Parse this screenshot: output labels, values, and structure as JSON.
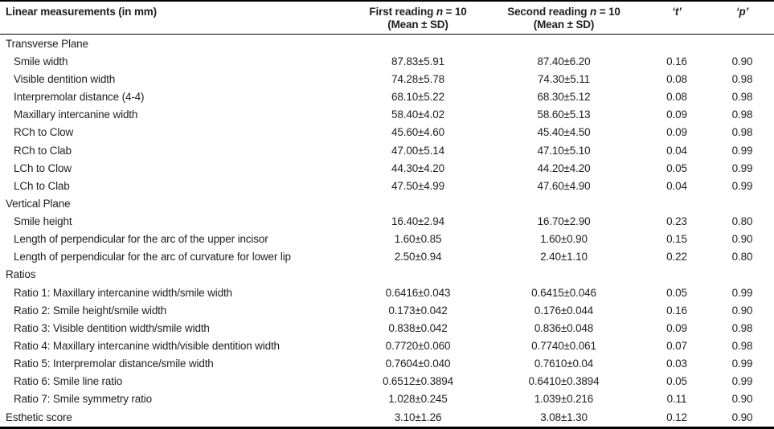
{
  "table": {
    "header": {
      "label_col": "Linear measurements (in mm)",
      "first": {
        "pre": "First reading ",
        "n": "n",
        "post": " = 10",
        "line2": "(Mean ± SD)"
      },
      "second": {
        "pre": "Second reading ",
        "n": "n",
        "post": " = 10",
        "line2": "(Mean ± SD)"
      },
      "t": "‘t’",
      "p": "‘p’"
    },
    "rows": [
      {
        "label": "Transverse Plane",
        "indent": false,
        "first": "",
        "second": "",
        "t": "",
        "p": ""
      },
      {
        "label": "Smile width",
        "indent": true,
        "first": "87.83±5.91",
        "second": "87.40±6.20",
        "t": "0.16",
        "p": "0.90"
      },
      {
        "label": "Visible dentition width",
        "indent": true,
        "first": "74.28±5.78",
        "second": "74.30±5.11",
        "t": "0.08",
        "p": "0.98"
      },
      {
        "label": "Interpremolar distance (4-4)",
        "indent": true,
        "first": "68.10±5.22",
        "second": "68.30±5.12",
        "t": "0.08",
        "p": "0.98"
      },
      {
        "label": "Maxillary intercanine width",
        "indent": true,
        "first": "58.40±4.02",
        "second": "58.60±5.13",
        "t": "0.09",
        "p": "0.98"
      },
      {
        "label": "RCh to Clow",
        "indent": true,
        "first": "45.60±4.60",
        "second": "45.40±4.50",
        "t": "0.09",
        "p": "0.98"
      },
      {
        "label": "RCh to Clab",
        "indent": true,
        "first": "47.00±5.14",
        "second": "47.10±5.10",
        "t": "0.04",
        "p": "0.99"
      },
      {
        "label": "LCh to Clow",
        "indent": true,
        "first": "44.30±4.20",
        "second": "44.20±4.20",
        "t": "0.05",
        "p": "0.99"
      },
      {
        "label": "LCh to Clab",
        "indent": true,
        "first": "47.50±4.99",
        "second": "47.60±4.90",
        "t": "0.04",
        "p": "0.99"
      },
      {
        "label": "Vertical Plane",
        "indent": false,
        "first": "",
        "second": "",
        "t": "",
        "p": ""
      },
      {
        "label": "Smile height",
        "indent": true,
        "first": "16.40±2.94",
        "second": "16.70±2.90",
        "t": "0.23",
        "p": "0.80"
      },
      {
        "label": "Length of perpendicular for the arc of the upper incisor",
        "indent": true,
        "first": "1.60±0.85",
        "second": "1.60±0.90",
        "t": "0.15",
        "p": "0.90"
      },
      {
        "label": "Length of perpendicular for the arc of curvature for lower lip",
        "indent": true,
        "first": "2.50±0.94",
        "second": "2.40±1.10",
        "t": "0.22",
        "p": "0.80"
      },
      {
        "label": "Ratios",
        "indent": false,
        "first": "",
        "second": "",
        "t": "",
        "p": ""
      },
      {
        "label": "Ratio 1: Maxillary intercanine width/smile width",
        "indent": true,
        "first": "0.6416±0.043",
        "second": "0.6415±0.046",
        "t": "0.05",
        "p": "0.99"
      },
      {
        "label": "Ratio 2: Smile height/smile width",
        "indent": true,
        "first": "0.173±0.042",
        "second": "0.176±0.044",
        "t": "0.16",
        "p": "0.90"
      },
      {
        "label": "Ratio 3: Visible dentition width/smile width",
        "indent": true,
        "first": "0.838±0.042",
        "second": "0.836±0.048",
        "t": "0.09",
        "p": "0.98"
      },
      {
        "label": "Ratio 4: Maxillary intercanine width/visible dentition width",
        "indent": true,
        "first": "0.7720±0.060",
        "second": "0.7740±0.061",
        "t": "0.07",
        "p": "0.98"
      },
      {
        "label": "Ratio 5: Interpremolar distance/smile width",
        "indent": true,
        "first": "0.7604±0.040",
        "second": "0.7610±0.04",
        "t": "0.03",
        "p": "0.99"
      },
      {
        "label": "Ratio 6: Smile line ratio",
        "indent": true,
        "first": "0.6512±0.3894",
        "second": "0.6410±0.3894",
        "t": "0.05",
        "p": "0.99"
      },
      {
        "label": "Ratio 7: Smile symmetry ratio",
        "indent": true,
        "first": "1.028±0.245",
        "second": "1.039±0.216",
        "t": "0.11",
        "p": "0.90"
      },
      {
        "label": "Esthetic score",
        "indent": false,
        "first": "3.10±1.26",
        "second": "3.08±1.30",
        "t": "0.12",
        "p": "0.90"
      }
    ],
    "colors": {
      "text": "#1f1f1f",
      "border": "#000000",
      "background": "#ffffff"
    }
  }
}
